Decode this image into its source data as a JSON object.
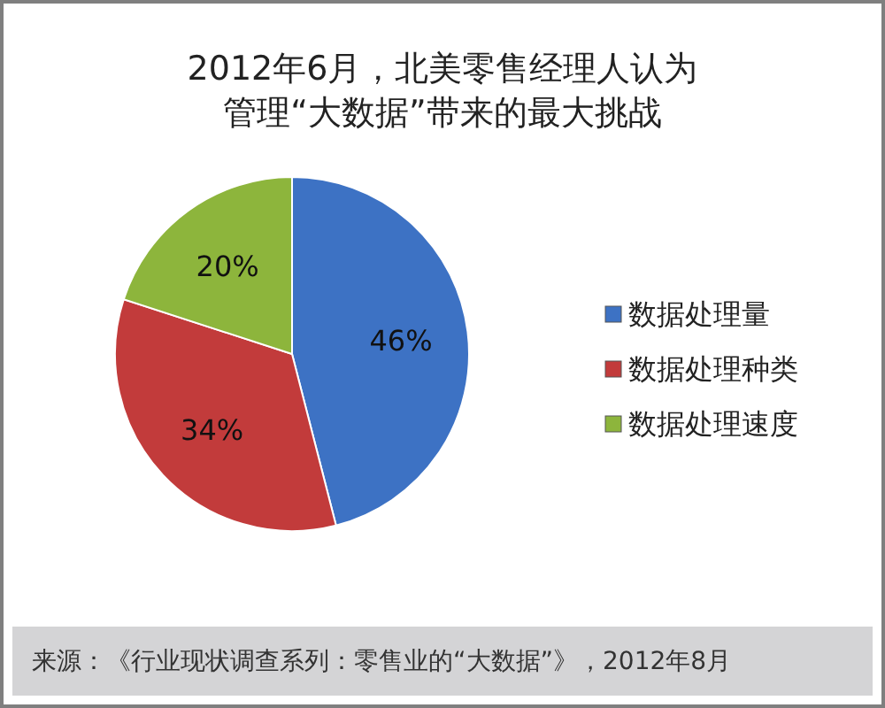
{
  "chart_data": {
    "type": "pie",
    "title": "2012年6月，北美零售经理人认为管理“大数据”带来的最大挑战",
    "categories": [
      "数据处理量",
      "数据处理种类",
      "数据处理速度"
    ],
    "values": [
      46,
      34,
      20
    ],
    "colors": [
      "#3d72c4",
      "#c23b3b",
      "#8db53c"
    ],
    "value_labels": [
      "46%",
      "34%",
      "20%"
    ],
    "legend": "right",
    "annotations": [
      "来源：《行业现状调查系列：零售业的“大数据”》，2012年8月"
    ]
  }
}
